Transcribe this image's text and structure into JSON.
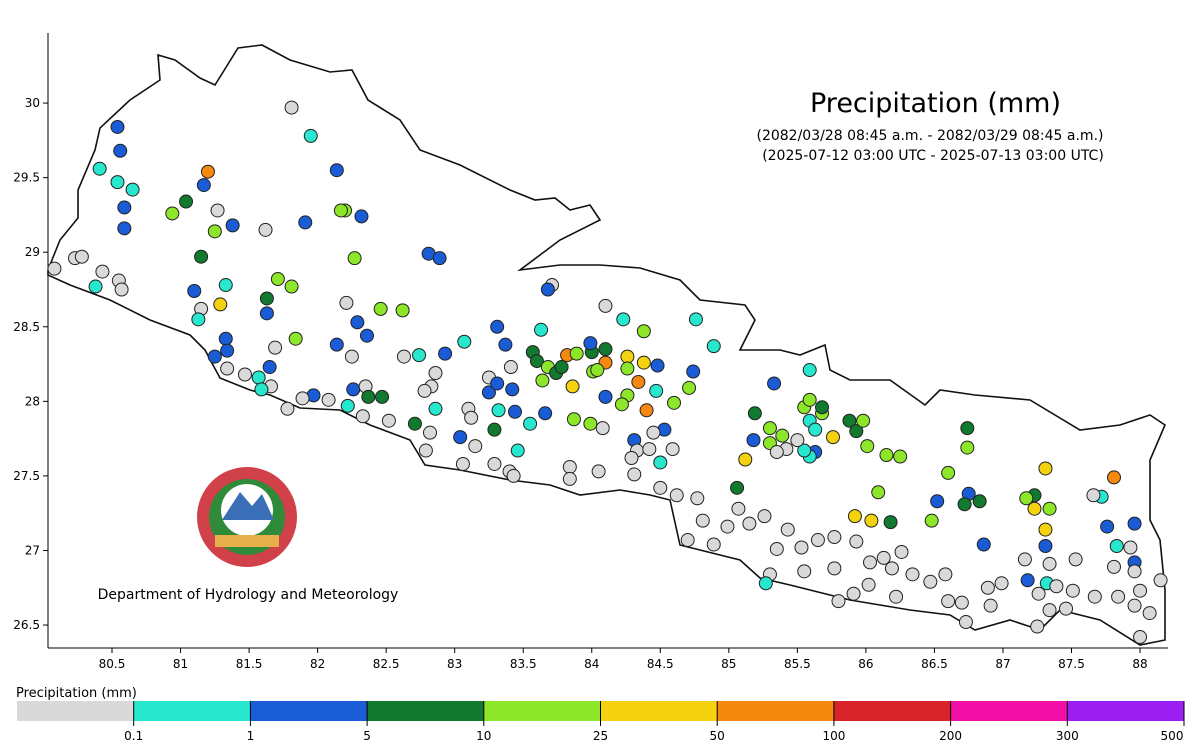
{
  "map": {
    "title": "Precipitation (mm)",
    "subtitle_1": "(2082/03/28 08:45 a.m. - 2082/03/29 08:45 a.m.)",
    "subtitle_2": "(2025-07-12 03:00 UTC - 2025-07-13 03:00 UTC)",
    "credit": "Department of Hydrology and Meteorology",
    "xlim": [
      80.033,
      88.204
    ],
    "ylim": [
      26.346,
      30.47
    ],
    "xticks": [
      80.5,
      81,
      81.5,
      82,
      82.5,
      83,
      83.5,
      84,
      84.5,
      85,
      85.5,
      86,
      86.5,
      87,
      87.5,
      88
    ],
    "yticks": [
      26.5,
      27,
      27.5,
      28,
      28.5,
      29,
      29.5,
      30
    ],
    "stations": [
      [
        80.54,
        29.84,
        2
      ],
      [
        80.56,
        29.68,
        2
      ],
      [
        80.41,
        29.56,
        1
      ],
      [
        80.54,
        29.47,
        1
      ],
      [
        80.65,
        29.42,
        1
      ],
      [
        80.59,
        29.3,
        2
      ],
      [
        80.59,
        29.16,
        2
      ],
      [
        80.94,
        29.26,
        4
      ],
      [
        81.04,
        29.34,
        3
      ],
      [
        81.2,
        29.54,
        6
      ],
      [
        81.17,
        29.45,
        2
      ],
      [
        81.27,
        29.28,
        0
      ],
      [
        81.38,
        29.18,
        2
      ],
      [
        81.25,
        29.14,
        4
      ],
      [
        81.81,
        29.97,
        0
      ],
      [
        81.95,
        29.78,
        1
      ],
      [
        82.14,
        29.55,
        2
      ],
      [
        82.2,
        29.28,
        4
      ],
      [
        82.17,
        29.28,
        4
      ],
      [
        82.32,
        29.24,
        2
      ],
      [
        81.91,
        29.2,
        2
      ],
      [
        81.62,
        29.15,
        0
      ],
      [
        80.08,
        28.89,
        0
      ],
      [
        80.23,
        28.96,
        0
      ],
      [
        80.28,
        28.97,
        0
      ],
      [
        80.43,
        28.87,
        0
      ],
      [
        80.55,
        28.81,
        0
      ],
      [
        80.57,
        28.75,
        0
      ],
      [
        80.38,
        28.77,
        1
      ],
      [
        81.15,
        28.97,
        3
      ],
      [
        81.33,
        28.78,
        1
      ],
      [
        81.1,
        28.74,
        2
      ],
      [
        81.63,
        28.69,
        3
      ],
      [
        81.63,
        28.59,
        2
      ],
      [
        81.15,
        28.62,
        0
      ],
      [
        81.29,
        28.65,
        5
      ],
      [
        81.13,
        28.55,
        1
      ],
      [
        81.71,
        28.82,
        4
      ],
      [
        81.81,
        28.77,
        4
      ],
      [
        82.27,
        28.96,
        4
      ],
      [
        82.81,
        28.99,
        2
      ],
      [
        82.89,
        28.96,
        2
      ],
      [
        82.21,
        28.66,
        0
      ],
      [
        82.29,
        28.53,
        2
      ],
      [
        82.46,
        28.62,
        4
      ],
      [
        82.62,
        28.61,
        4
      ],
      [
        82.14,
        28.38,
        2
      ],
      [
        82.25,
        28.3,
        0
      ],
      [
        82.36,
        28.44,
        2
      ],
      [
        81.84,
        28.42,
        4
      ],
      [
        81.33,
        28.42,
        2
      ],
      [
        81.34,
        28.34,
        2
      ],
      [
        81.25,
        28.3,
        2
      ],
      [
        81.34,
        28.22,
        0
      ],
      [
        81.47,
        28.18,
        0
      ],
      [
        81.69,
        28.36,
        0
      ],
      [
        81.65,
        28.23,
        2
      ],
      [
        81.57,
        28.16,
        1
      ],
      [
        81.66,
        28.1,
        0
      ],
      [
        81.59,
        28.08,
        1
      ],
      [
        81.97,
        28.04,
        2
      ],
      [
        81.89,
        28.02,
        0
      ],
      [
        82.08,
        28.01,
        0
      ],
      [
        81.78,
        27.95,
        0
      ],
      [
        82.26,
        28.08,
        2
      ],
      [
        82.35,
        28.1,
        0
      ],
      [
        82.37,
        28.03,
        3
      ],
      [
        82.47,
        28.03,
        3
      ],
      [
        82.22,
        27.97,
        1
      ],
      [
        82.33,
        27.9,
        0
      ],
      [
        82.52,
        27.87,
        0
      ],
      [
        82.71,
        27.85,
        3
      ],
      [
        82.82,
        27.79,
        0
      ],
      [
        82.63,
        28.3,
        0
      ],
      [
        82.74,
        28.31,
        1
      ],
      [
        82.93,
        28.32,
        2
      ],
      [
        83.07,
        28.4,
        1
      ],
      [
        82.86,
        28.19,
        0
      ],
      [
        82.83,
        28.1,
        0
      ],
      [
        82.78,
        28.07,
        0
      ],
      [
        82.86,
        27.95,
        1
      ],
      [
        82.79,
        27.67,
        0
      ],
      [
        83.06,
        27.58,
        0
      ],
      [
        83.04,
        27.76,
        2
      ],
      [
        83.15,
        27.7,
        0
      ],
      [
        83.31,
        28.5,
        2
      ],
      [
        83.37,
        28.38,
        2
      ],
      [
        83.25,
        28.16,
        0
      ],
      [
        83.25,
        28.06,
        2
      ],
      [
        83.31,
        28.12,
        2
      ],
      [
        83.42,
        28.08,
        2
      ],
      [
        83.41,
        28.23,
        0
      ],
      [
        83.1,
        27.95,
        0
      ],
      [
        83.32,
        27.94,
        1
      ],
      [
        83.44,
        27.93,
        2
      ],
      [
        83.29,
        27.81,
        3
      ],
      [
        83.12,
        27.89,
        0
      ],
      [
        83.29,
        27.58,
        0
      ],
      [
        83.46,
        27.67,
        1
      ],
      [
        83.4,
        27.53,
        0
      ],
      [
        83.43,
        27.5,
        0
      ],
      [
        83.71,
        28.78,
        0
      ],
      [
        83.68,
        28.75,
        2
      ],
      [
        83.63,
        28.48,
        1
      ],
      [
        83.57,
        28.33,
        3
      ],
      [
        83.6,
        28.27,
        3
      ],
      [
        83.68,
        28.23,
        4
      ],
      [
        83.64,
        28.14,
        4
      ],
      [
        83.82,
        28.31,
        6
      ],
      [
        83.89,
        28.32,
        4
      ],
      [
        83.74,
        28.19,
        3
      ],
      [
        83.86,
        28.1,
        5
      ],
      [
        83.78,
        28.23,
        3
      ],
      [
        84.0,
        28.33,
        3
      ],
      [
        84.1,
        28.26,
        6
      ],
      [
        84.01,
        28.2,
        4
      ],
      [
        84.04,
        28.21,
        4
      ],
      [
        83.99,
        28.39,
        2
      ],
      [
        84.1,
        28.35,
        3
      ],
      [
        84.1,
        28.64,
        0
      ],
      [
        84.23,
        28.55,
        1
      ],
      [
        84.38,
        28.47,
        4
      ],
      [
        84.26,
        28.3,
        5
      ],
      [
        84.38,
        28.26,
        5
      ],
      [
        84.26,
        28.22,
        4
      ],
      [
        84.48,
        28.24,
        2
      ],
      [
        84.34,
        28.13,
        6
      ],
      [
        84.26,
        28.04,
        4
      ],
      [
        84.22,
        27.98,
        4
      ],
      [
        84.1,
        28.03,
        2
      ],
      [
        84.4,
        27.94,
        6
      ],
      [
        84.47,
        28.07,
        1
      ],
      [
        84.6,
        27.99,
        4
      ],
      [
        84.71,
        28.09,
        4
      ],
      [
        84.74,
        28.2,
        2
      ],
      [
        84.76,
        28.55,
        1
      ],
      [
        84.89,
        28.37,
        1
      ],
      [
        83.66,
        27.92,
        2
      ],
      [
        83.55,
        27.85,
        1
      ],
      [
        83.87,
        27.88,
        4
      ],
      [
        83.99,
        27.85,
        4
      ],
      [
        84.08,
        27.82,
        0
      ],
      [
        84.53,
        27.81,
        2
      ],
      [
        84.31,
        27.74,
        2
      ],
      [
        84.33,
        27.67,
        0
      ],
      [
        84.42,
        27.68,
        0
      ],
      [
        84.5,
        27.59,
        1
      ],
      [
        83.84,
        27.56,
        0
      ],
      [
        83.84,
        27.48,
        0
      ],
      [
        84.05,
        27.53,
        0
      ],
      [
        84.31,
        27.51,
        0
      ],
      [
        84.5,
        27.42,
        0
      ],
      [
        84.62,
        27.37,
        0
      ],
      [
        85.06,
        27.42,
        3
      ],
      [
        85.12,
        27.61,
        5
      ],
      [
        85.19,
        27.92,
        3
      ],
      [
        85.18,
        27.74,
        2
      ],
      [
        85.33,
        28.12,
        2
      ],
      [
        85.59,
        28.21,
        1
      ],
      [
        85.3,
        27.82,
        4
      ],
      [
        85.3,
        27.72,
        4
      ],
      [
        85.39,
        27.77,
        4
      ],
      [
        85.55,
        27.96,
        4
      ],
      [
        85.59,
        28.01,
        4
      ],
      [
        85.68,
        27.92,
        4
      ],
      [
        85.68,
        27.96,
        3
      ],
      [
        85.59,
        27.87,
        1
      ],
      [
        85.63,
        27.81,
        1
      ],
      [
        85.76,
        27.76,
        5
      ],
      [
        85.63,
        27.66,
        2
      ],
      [
        85.59,
        27.63,
        1
      ],
      [
        85.55,
        27.67,
        1
      ],
      [
        85.42,
        27.68,
        0
      ],
      [
        85.35,
        27.66,
        0
      ],
      [
        85.5,
        27.74,
        0
      ],
      [
        85.88,
        27.87,
        3
      ],
      [
        85.93,
        27.8,
        3
      ],
      [
        85.98,
        27.87,
        4
      ],
      [
        86.01,
        27.7,
        4
      ],
      [
        86.15,
        27.64,
        4
      ],
      [
        86.25,
        27.63,
        4
      ],
      [
        86.09,
        27.39,
        4
      ],
      [
        85.92,
        27.23,
        5
      ],
      [
        86.04,
        27.2,
        5
      ],
      [
        86.18,
        27.19,
        3
      ],
      [
        86.6,
        27.52,
        4
      ],
      [
        86.74,
        27.82,
        3
      ],
      [
        86.74,
        27.69,
        4
      ],
      [
        86.52,
        27.33,
        2
      ],
      [
        86.75,
        27.38,
        2
      ],
      [
        86.83,
        27.33,
        3
      ],
      [
        86.72,
        27.31,
        3
      ],
      [
        86.48,
        27.2,
        4
      ],
      [
        86.86,
        27.04,
        2
      ],
      [
        87.23,
        27.37,
        3
      ],
      [
        87.17,
        27.35,
        4
      ],
      [
        87.31,
        27.55,
        5
      ],
      [
        87.23,
        27.28,
        5
      ],
      [
        87.34,
        27.28,
        4
      ],
      [
        87.31,
        27.14,
        5
      ],
      [
        87.31,
        27.03,
        2
      ],
      [
        87.34,
        26.91,
        0
      ],
      [
        87.32,
        26.78,
        1
      ],
      [
        87.18,
        26.8,
        2
      ],
      [
        87.72,
        27.36,
        1
      ],
      [
        87.66,
        27.37,
        0
      ],
      [
        87.81,
        27.49,
        6
      ],
      [
        87.76,
        27.16,
        2
      ],
      [
        87.96,
        27.18,
        2
      ],
      [
        87.83,
        27.03,
        1
      ],
      [
        87.96,
        26.92,
        2
      ],
      [
        84.81,
        27.2,
        0
      ],
      [
        84.7,
        27.07,
        0
      ],
      [
        84.89,
        27.04,
        0
      ],
      [
        84.99,
        27.16,
        0
      ],
      [
        85.07,
        27.28,
        0
      ],
      [
        85.15,
        27.18,
        0
      ],
      [
        85.26,
        27.23,
        0
      ],
      [
        85.43,
        27.14,
        0
      ],
      [
        85.35,
        27.01,
        0
      ],
      [
        85.53,
        27.02,
        0
      ],
      [
        85.65,
        27.07,
        0
      ],
      [
        85.77,
        27.09,
        0
      ],
      [
        85.93,
        27.06,
        0
      ],
      [
        85.77,
        26.88,
        0
      ],
      [
        85.55,
        26.86,
        0
      ],
      [
        85.3,
        26.84,
        0
      ],
      [
        85.27,
        26.78,
        1
      ],
      [
        85.8,
        26.66,
        0
      ],
      [
        85.91,
        26.71,
        0
      ],
      [
        86.03,
        26.92,
        0
      ],
      [
        86.13,
        26.95,
        0
      ],
      [
        86.26,
        26.99,
        0
      ],
      [
        86.34,
        26.84,
        0
      ],
      [
        86.22,
        26.69,
        0
      ],
      [
        86.47,
        26.79,
        0
      ],
      [
        86.58,
        26.84,
        0
      ],
      [
        86.6,
        26.66,
        0
      ],
      [
        86.7,
        26.65,
        0
      ],
      [
        86.91,
        26.63,
        0
      ],
      [
        86.89,
        26.75,
        0
      ],
      [
        86.99,
        26.78,
        0
      ],
      [
        87.16,
        26.94,
        0
      ],
      [
        87.26,
        26.71,
        0
      ],
      [
        87.34,
        26.6,
        0
      ],
      [
        87.46,
        26.61,
        0
      ],
      [
        87.51,
        26.73,
        0
      ],
      [
        87.67,
        26.69,
        0
      ],
      [
        87.81,
        26.89,
        0
      ],
      [
        87.96,
        26.86,
        0
      ],
      [
        88.0,
        26.73,
        0
      ],
      [
        88.15,
        26.8,
        0
      ],
      [
        88.0,
        26.42,
        0
      ],
      [
        88.07,
        26.58,
        0
      ],
      [
        87.96,
        26.63,
        0
      ],
      [
        87.84,
        26.69,
        0
      ],
      [
        87.25,
        26.49,
        0
      ],
      [
        86.73,
        26.52,
        0
      ],
      [
        87.39,
        26.76,
        0
      ],
      [
        87.53,
        26.94,
        0
      ],
      [
        87.93,
        27.02,
        0
      ],
      [
        86.02,
        26.77,
        0
      ],
      [
        86.19,
        26.88,
        0
      ],
      [
        84.77,
        27.35,
        0
      ],
      [
        84.59,
        27.68,
        0
      ],
      [
        84.45,
        27.79,
        0
      ],
      [
        84.29,
        27.62,
        0
      ]
    ]
  },
  "legend": {
    "title": "Precipitation (mm)",
    "colors": [
      "#d9d9d9",
      "#27e8cf",
      "#1a5cd6",
      "#117a2f",
      "#8de629",
      "#f5d20f",
      "#f5880f",
      "#d8232a",
      "#f20fa5",
      "#9a1ff0"
    ],
    "bounds": [
      0.1,
      1,
      5,
      10,
      25,
      50,
      100,
      200,
      300,
      500
    ]
  }
}
